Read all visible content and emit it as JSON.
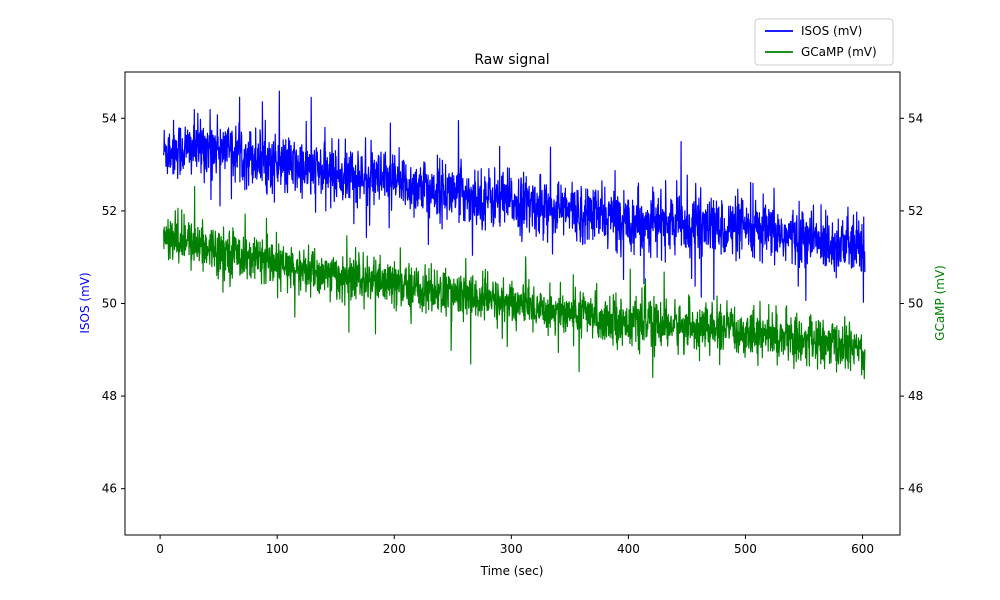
{
  "chart_data": {
    "type": "line",
    "title": "Raw signal",
    "xlabel": "Time (sec)",
    "ylabel": "ISOS (mV)",
    "ylabel_right": "GCaMP (mV)",
    "xlim": [
      -30,
      632
    ],
    "ylim": [
      45,
      55
    ],
    "ylim_right": [
      45,
      55
    ],
    "x_ticks": [
      0,
      100,
      200,
      300,
      400,
      500,
      600
    ],
    "y_ticks": [
      46,
      48,
      50,
      52,
      54
    ],
    "y_ticks_right": [
      46,
      48,
      50,
      52,
      54
    ],
    "grid": false,
    "legend": {
      "position": "top-right, above plot"
    },
    "series": [
      {
        "name": "ISOS (mV)",
        "color": "#0000ff",
        "axis": "left",
        "x": [
          3,
          50,
          100,
          150,
          200,
          250,
          300,
          350,
          400,
          450,
          500,
          550,
          602
        ],
        "values": [
          53.3,
          53.4,
          53.0,
          52.8,
          52.6,
          52.4,
          52.2,
          52.0,
          51.8,
          51.7,
          51.6,
          51.4,
          51.2
        ],
        "noise_amplitude": 0.75
      },
      {
        "name": "GCaMP (mV)",
        "color": "#008000",
        "axis": "right",
        "x": [
          3,
          50,
          100,
          150,
          200,
          250,
          300,
          350,
          400,
          450,
          500,
          550,
          602
        ],
        "values": [
          51.4,
          51.2,
          50.8,
          50.6,
          50.4,
          50.2,
          50.0,
          49.8,
          49.6,
          49.5,
          49.4,
          49.2,
          49.0
        ],
        "noise_amplitude": 0.6
      }
    ]
  }
}
